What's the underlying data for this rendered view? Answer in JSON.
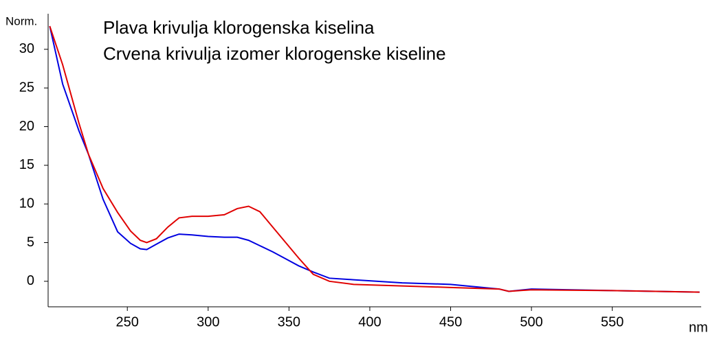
{
  "chart_data": {
    "type": "line",
    "annotations": [
      "Plava krivulja klorogenska kiselina",
      "Crvena krivulja izomer klorogenske kiseline"
    ],
    "y_label": "Norm.",
    "x_label": "nm",
    "x": [
      202,
      210,
      220,
      226,
      235,
      244,
      252,
      258,
      262,
      268,
      275,
      282,
      290,
      300,
      310,
      318,
      325,
      332,
      340,
      348,
      356,
      365,
      375,
      390,
      420,
      450,
      480,
      486,
      500,
      550,
      604
    ],
    "series": [
      {
        "color": "#0000e0",
        "values": [
          33,
          25.5,
          19.5,
          16.4,
          10.6,
          6.4,
          4.9,
          4.2,
          4.1,
          4.8,
          5.6,
          6.1,
          6.0,
          5.8,
          5.7,
          5.7,
          5.3,
          4.6,
          3.8,
          2.9,
          2.0,
          1.2,
          0.4,
          0.2,
          -0.2,
          -0.4,
          -1.0,
          -1.3,
          -1.0,
          -1.2,
          -1.4
        ]
      },
      {
        "color": "#e00000",
        "values": [
          33,
          28,
          20.5,
          16.4,
          12,
          8.9,
          6.5,
          5.3,
          5.0,
          5.5,
          7.0,
          8.2,
          8.4,
          8.4,
          8.6,
          9.4,
          9.7,
          9.0,
          7.0,
          5.0,
          3.0,
          0.9,
          0.0,
          -0.4,
          -0.6,
          -0.8,
          -1.0,
          -1.3,
          -1.1,
          -1.2,
          -1.4
        ]
      }
    ],
    "xlim": [
      201,
      605
    ],
    "ylim": [
      -3.3,
      34.6
    ],
    "xticks": [
      250,
      300,
      350,
      400,
      450,
      500,
      550
    ],
    "yticks": [
      0,
      5,
      10,
      15,
      20,
      25,
      30
    ]
  }
}
